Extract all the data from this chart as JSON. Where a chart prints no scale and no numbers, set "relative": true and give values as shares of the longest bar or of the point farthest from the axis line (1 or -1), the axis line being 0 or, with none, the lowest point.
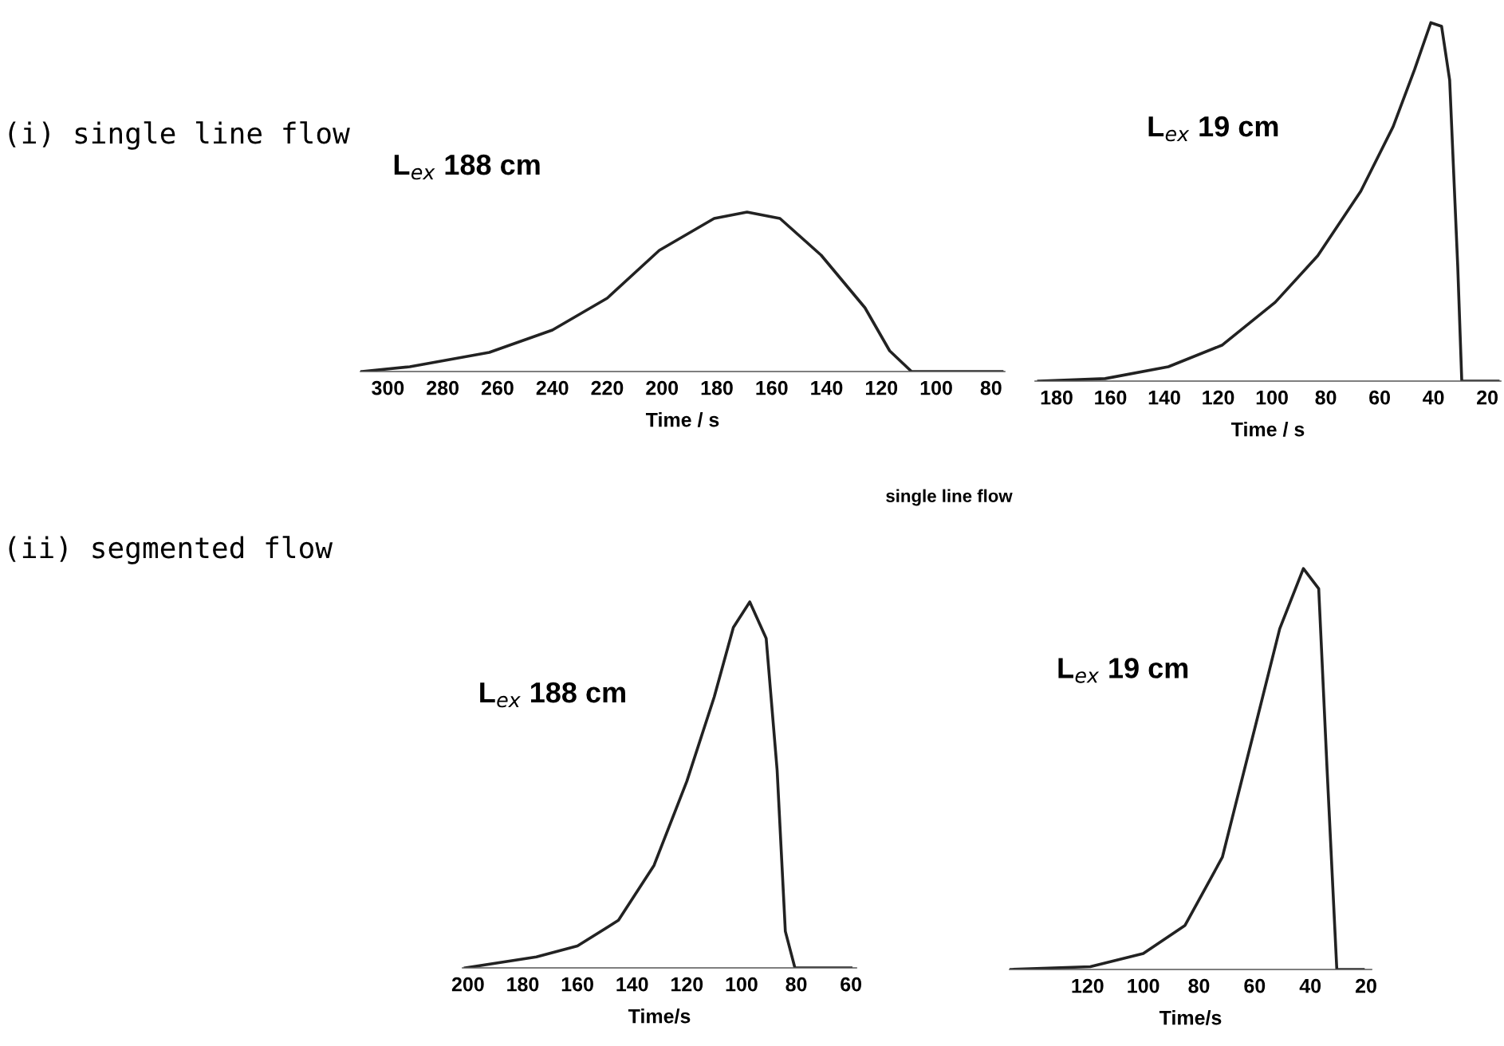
{
  "chart_data": [
    {
      "type": "line",
      "title": "(i) single line flow",
      "relative": true,
      "xlabel": "Time / s",
      "annotations": [
        "L$_{ex}$ 188 cm",
        "single line flow"
      ],
      "xlim": [
        310,
        75
      ],
      "xticks": [
        300,
        280,
        260,
        240,
        220,
        200,
        180,
        160,
        140,
        120,
        100,
        80
      ],
      "series": [
        {
          "color": "#222222",
          "x": [
            309.5,
            292,
            263,
            240,
            220,
            201,
            181,
            169,
            157,
            142,
            126,
            117,
            109,
            76
          ],
          "values": [
            0,
            0.03,
            0.12,
            0.26,
            0.46,
            0.76,
            0.96,
            1.0,
            0.96,
            0.73,
            0.4,
            0.13,
            0,
            0
          ]
        }
      ]
    },
    {
      "type": "line",
      "relative": true,
      "xlabel": "Time / s",
      "annotations": [
        "L$_{ex}$ 19 cm"
      ],
      "xlim": [
        188,
        15
      ],
      "xticks": [
        180,
        160,
        140,
        120,
        100,
        80,
        60,
        40,
        20
      ],
      "series": [
        {
          "color": "#222222",
          "x": [
            186.7,
            162,
            138.5,
            118.6,
            98.8,
            83,
            67,
            55,
            47,
            41,
            37,
            34,
            31,
            29.5,
            16
          ],
          "values": [
            0,
            0.007,
            0.04,
            0.1,
            0.22,
            0.35,
            0.53,
            0.71,
            0.87,
            1.0,
            0.99,
            0.84,
            0.32,
            0,
            0
          ]
        }
      ]
    },
    {
      "type": "line",
      "title": "(ii) segmented flow",
      "relative": true,
      "xlabel": "Time/s",
      "annotations": [
        "L$_{ex}$ 188 cm"
      ],
      "xlim": [
        202,
        58
      ],
      "xticks": [
        200,
        180,
        160,
        140,
        120,
        100,
        80,
        60
      ],
      "series": [
        {
          "color": "#222222",
          "x": [
            201,
            175,
            160,
            145,
            132,
            120,
            110,
            103,
            97,
            91,
            87,
            84,
            80.5,
            60
          ],
          "values": [
            0,
            0.03,
            0.06,
            0.13,
            0.28,
            0.51,
            0.74,
            0.93,
            1.0,
            0.9,
            0.54,
            0.1,
            0,
            0
          ]
        }
      ]
    },
    {
      "type": "line",
      "relative": true,
      "xlabel": "Time/s",
      "annotations": [
        "L$_{ex}$ 19 cm"
      ],
      "xlim": [
        148,
        18
      ],
      "xticks": [
        120,
        100,
        80,
        60,
        40,
        20
      ],
      "series": [
        {
          "color": "#222222",
          "x": [
            147.6,
            119,
            100,
            85,
            71.6,
            60,
            51,
            42.5,
            37,
            34,
            30.5,
            21
          ],
          "values": [
            0,
            0.007,
            0.04,
            0.11,
            0.28,
            0.6,
            0.85,
            1.0,
            0.95,
            0.5,
            0,
            0
          ]
        }
      ]
    }
  ]
}
